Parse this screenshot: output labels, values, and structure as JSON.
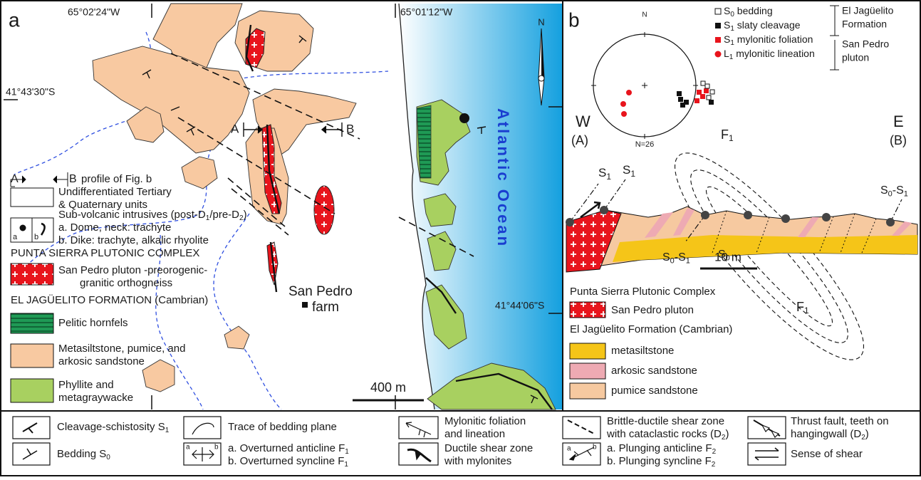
{
  "panel_a": {
    "label": "a",
    "longitudes": [
      "65°02'24\"W",
      "65°01'12\"W"
    ],
    "latitudes": [
      "41°43'30\"S",
      "41°44'06\"S"
    ],
    "ocean": "Atlantic Ocean",
    "north": "N",
    "farm": [
      "San Pedro",
      "farm"
    ],
    "scale": "400 m",
    "profile_ends": [
      "A",
      "B"
    ],
    "legend": {
      "profile": {
        "ends": [
          "A",
          "B"
        ],
        "text": "profile of Fig. b"
      },
      "undifferentiated": [
        "Undifferentiated Tertiary",
        "& Quaternary units"
      ],
      "subvolcanic": [
        [
          "Sub-volcanic intrusives (post-D",
          {
            "sub": "1"
          },
          "/pre-D",
          {
            "sub": "2"
          },
          ")"
        ],
        "a. Dome, neck: trachyte",
        "b. Dike: trachyte, alkalic rhyolite"
      ],
      "subvolcanic_marks": [
        "a",
        "b"
      ],
      "complex": "PUNTA SIERRA PLUTONIC COMPLEX",
      "pluton": [
        "San Pedro pluton -preorogenic-",
        "granitic orthogneiss"
      ],
      "formation": "EL JAGÜELITO FORMATION (Cambrian)",
      "hornfels": "Pelitic hornfels",
      "metasiltstone": [
        "Metasiltstone, pumice, and",
        "arkosic sandstone"
      ],
      "phyllite": [
        "Phyllite and",
        "metagraywacke"
      ]
    }
  },
  "panel_b": {
    "label": "b",
    "stereonet": {
      "north": "N",
      "count": "N=26",
      "legend": [
        [
          "S",
          {
            "sub": "0"
          },
          " bedding"
        ],
        [
          "S",
          {
            "sub": "1"
          },
          " slaty cleavage"
        ],
        [
          "S",
          {
            "sub": "1"
          },
          " mylonitic foliation"
        ],
        [
          "L",
          {
            "sub": "1"
          },
          " mylonitic lineation"
        ]
      ],
      "groups": [
        [
          "El Jagüelito",
          "Formation"
        ],
        [
          "San Pedro",
          "pluton"
        ]
      ]
    },
    "section": {
      "west": "W",
      "west_end": "(A)",
      "east": "E",
      "east_end": "(B)",
      "folds": [
        [
          "F",
          {
            "sub": "1"
          }
        ],
        [
          "F",
          {
            "sub": "1"
          }
        ]
      ],
      "cleavage": [
        [
          "S",
          {
            "sub": "1"
          }
        ],
        [
          "S",
          {
            "sub": "1"
          }
        ]
      ],
      "intersections": [
        [
          "S",
          {
            "sub": "0"
          },
          "-S",
          {
            "sub": "1"
          }
        ],
        [
          "S",
          {
            "sub": "0"
          },
          "-S",
          {
            "sub": "1"
          }
        ]
      ],
      "bedding": [
        "S",
        {
          "sub": "0"
        }
      ],
      "scale": "10 m"
    },
    "legend": {
      "complex": "Punta Sierra Plutonic Complex",
      "pluton": "San Pedro pluton",
      "formation": "El Jagüelito Formation (Cambrian)",
      "units": [
        "metasiltstone",
        "arkosic sandstone",
        "pumice sandstone"
      ]
    }
  },
  "legend": {
    "cleavage": [
      "Cleavage-schistosity S",
      {
        "sub": "1"
      }
    ],
    "bedding": [
      "Bedding S",
      {
        "sub": "0"
      }
    ],
    "bedding_trace": "Trace of bedding plane",
    "overturned": [
      [
        "a. Overturned anticline F",
        {
          "sub": "1"
        }
      ],
      [
        "b. Overturned syncline F",
        {
          "sub": "1"
        }
      ]
    ],
    "overturned_marks": [
      "a",
      "b"
    ],
    "mylonitic": [
      "Mylonitic foliation",
      "and lineation"
    ],
    "ductile": [
      "Ductile shear zone",
      "with mylonites"
    ],
    "brittle": [
      "Brittle-ductile shear zone",
      [
        "with cataclastic rocks (D",
        {
          "sub": "2"
        },
        ")"
      ]
    ],
    "plunging": [
      [
        "a. Plunging anticline F",
        {
          "sub": "2"
        }
      ],
      [
        "b. Plunging syncline F",
        {
          "sub": "2"
        }
      ]
    ],
    "plunging_marks": [
      "a",
      "b"
    ],
    "thrust": [
      "Thrust fault, teeth on",
      [
        "hangingwall (D",
        {
          "sub": "2"
        },
        ")"
      ]
    ],
    "shear_sense": "Sense of shear"
  }
}
